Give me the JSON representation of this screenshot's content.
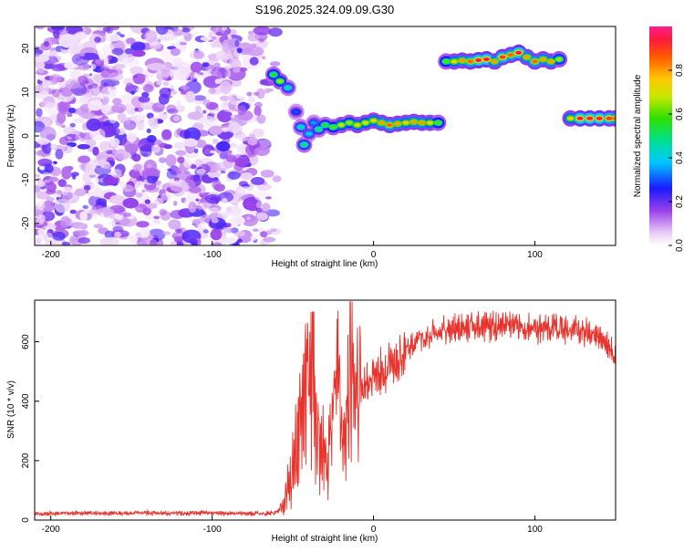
{
  "title": "S196.2025.324.09.09.G30",
  "chart_data": [
    {
      "type": "heatmap",
      "xlabel": "Height of straight line (km)",
      "ylabel": "Frequency (Hz)",
      "xlim": [
        -210,
        150
      ],
      "ylim": [
        -25,
        25
      ],
      "xticks": [
        -200,
        -100,
        0,
        100
      ],
      "yticks": [
        -20,
        -10,
        0,
        10,
        20
      ],
      "colorbar": {
        "label": "Normalized spectral amplitude",
        "range": [
          0,
          1
        ],
        "ticks": [
          0.0,
          0.2,
          0.4,
          0.6,
          0.8
        ],
        "tick_labels": [
          "0.0",
          "0.2",
          "0.4",
          "0.6",
          "0.8"
        ]
      },
      "noise_region": {
        "x": [
          -210,
          -58
        ],
        "y": [
          -25,
          25
        ]
      },
      "ridge": [
        {
          "x": -62,
          "y": 14.0,
          "a": 0.55
        },
        {
          "x": -58,
          "y": 12.5,
          "a": 0.65
        },
        {
          "x": -53,
          "y": 11.0,
          "a": 0.45
        },
        {
          "x": -48,
          "y": 5.5,
          "a": 0.3
        },
        {
          "x": -45,
          "y": 2.0,
          "a": 0.45
        },
        {
          "x": -43,
          "y": -2.0,
          "a": 0.5
        },
        {
          "x": -40,
          "y": 0.5,
          "a": 0.4
        },
        {
          "x": -37,
          "y": 3.0,
          "a": 0.35
        },
        {
          "x": -34,
          "y": 1.5,
          "a": 0.5
        },
        {
          "x": -30,
          "y": 2.5,
          "a": 0.55
        },
        {
          "x": -25,
          "y": 2.0,
          "a": 0.6
        },
        {
          "x": -20,
          "y": 2.5,
          "a": 0.7
        },
        {
          "x": -15,
          "y": 3.0,
          "a": 0.65
        },
        {
          "x": -10,
          "y": 2.5,
          "a": 0.75
        },
        {
          "x": -5,
          "y": 3.0,
          "a": 0.7
        },
        {
          "x": 0,
          "y": 3.5,
          "a": 0.75
        },
        {
          "x": 5,
          "y": 3.0,
          "a": 0.8
        },
        {
          "x": 10,
          "y": 2.5,
          "a": 0.85
        },
        {
          "x": 15,
          "y": 2.8,
          "a": 0.8
        },
        {
          "x": 20,
          "y": 3.0,
          "a": 0.75
        },
        {
          "x": 25,
          "y": 3.2,
          "a": 0.8
        },
        {
          "x": 30,
          "y": 3.0,
          "a": 0.8
        },
        {
          "x": 35,
          "y": 3.0,
          "a": 0.75
        },
        {
          "x": 40,
          "y": 3.0,
          "a": 0.6
        },
        {
          "x": 45,
          "y": 17.0,
          "a": 0.6
        },
        {
          "x": 50,
          "y": 17.0,
          "a": 0.75
        },
        {
          "x": 55,
          "y": 17.2,
          "a": 0.8
        },
        {
          "x": 60,
          "y": 17.0,
          "a": 0.85
        },
        {
          "x": 65,
          "y": 17.3,
          "a": 0.95
        },
        {
          "x": 70,
          "y": 17.5,
          "a": 0.95
        },
        {
          "x": 75,
          "y": 17.0,
          "a": 0.8
        },
        {
          "x": 80,
          "y": 18.0,
          "a": 0.9
        },
        {
          "x": 85,
          "y": 18.5,
          "a": 0.85
        },
        {
          "x": 90,
          "y": 19.0,
          "a": 0.95
        },
        {
          "x": 95,
          "y": 18.0,
          "a": 0.8
        },
        {
          "x": 100,
          "y": 17.0,
          "a": 0.85
        },
        {
          "x": 105,
          "y": 17.5,
          "a": 0.8
        },
        {
          "x": 110,
          "y": 17.0,
          "a": 0.8
        },
        {
          "x": 115,
          "y": 17.5,
          "a": 0.65
        },
        {
          "x": 122,
          "y": 4.0,
          "a": 0.75
        },
        {
          "x": 128,
          "y": 4.0,
          "a": 0.95
        },
        {
          "x": 134,
          "y": 4.0,
          "a": 0.95
        },
        {
          "x": 140,
          "y": 4.0,
          "a": 0.95
        },
        {
          "x": 146,
          "y": 4.0,
          "a": 0.9
        },
        {
          "x": 150,
          "y": 4.0,
          "a": 0.85
        }
      ]
    },
    {
      "type": "line",
      "xlabel": "Height of straight line (km)",
      "ylabel": "SNR (10 * v/v)",
      "xlim": [
        -210,
        150
      ],
      "ylim": [
        0,
        740
      ],
      "xticks": [
        -200,
        -100,
        0,
        100
      ],
      "yticks": [
        0,
        200,
        400,
        600
      ],
      "color": "#e8322c",
      "series": [
        {
          "x": [
            -210,
            -200,
            -180,
            -160,
            -140,
            -120,
            -100,
            -80,
            -70,
            -60,
            -55,
            -50,
            -46,
            -43,
            -40,
            -38,
            -35,
            -32,
            -30,
            -28,
            -26,
            -24,
            -22,
            -20,
            -18,
            -16,
            -14,
            -12,
            -10,
            -5,
            0,
            5,
            10,
            15,
            20,
            25,
            30,
            35,
            40,
            45,
            50,
            55,
            60,
            65,
            70,
            75,
            80,
            85,
            90,
            95,
            100,
            105,
            110,
            115,
            120,
            125,
            130,
            135,
            140,
            145,
            150
          ],
          "y": [
            22,
            22,
            24,
            22,
            25,
            23,
            24,
            22,
            22,
            25,
            60,
            180,
            320,
            420,
            520,
            430,
            300,
            250,
            200,
            210,
            330,
            420,
            480,
            360,
            300,
            380,
            460,
            440,
            430,
            460,
            480,
            500,
            510,
            540,
            570,
            590,
            610,
            620,
            630,
            640,
            645,
            650,
            655,
            655,
            655,
            650,
            655,
            652,
            650,
            648,
            645,
            645,
            645,
            645,
            640,
            635,
            630,
            625,
            610,
            590,
            560
          ]
        }
      ]
    }
  ]
}
